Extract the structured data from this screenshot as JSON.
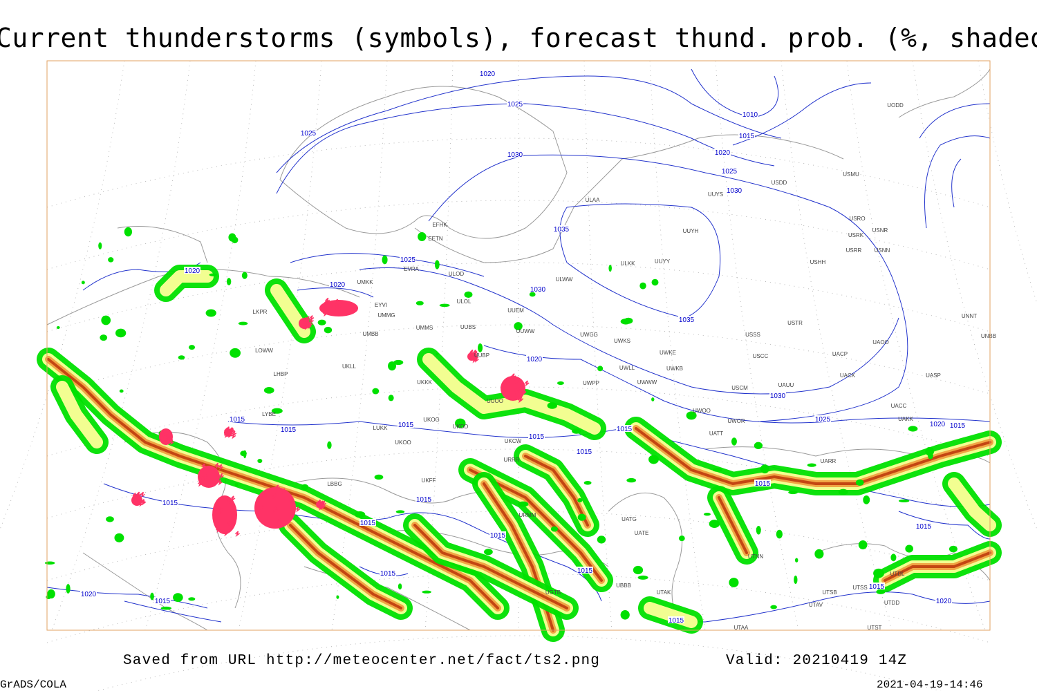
{
  "title": "Current thunderstorms (symbols), forecast thund. prob. (%, shaded)",
  "footer": {
    "source": "Saved from URL http://meteocenter.net/fact/ts2.png",
    "valid": "Valid: 20210419 14Z",
    "credit": "GrADS/COLA",
    "timestamp": "2021-04-19-14:46"
  },
  "isobar_labels": [
    "1020",
    "1025",
    "1025",
    "1030",
    "1010",
    "1015",
    "1020",
    "1025",
    "1030",
    "1035",
    "1025",
    "1020",
    "1020",
    "1030",
    "1035",
    "1020",
    "1030",
    "1025",
    "1015",
    "1015",
    "1015",
    "1015",
    "1015",
    "1015",
    "1020",
    "1015",
    "1015",
    "1015",
    "1015",
    "1015",
    "1015",
    "1015",
    "1015",
    "1015",
    "1020",
    "1015",
    "1015",
    "1020",
    "1015"
  ],
  "station_labels": [
    "UODD",
    "ULAA",
    "EFHK",
    "EETN",
    "EVRA",
    "ULOD",
    "UMKK",
    "EYVI",
    "UMMG",
    "ULOL",
    "UUEM",
    "UUWW",
    "UMMS",
    "UUBS",
    "UMBB",
    "UWGG",
    "UWKS",
    "UWKE",
    "USSS",
    "USTR",
    "USCC",
    "USCM",
    "UAUU",
    "UACP",
    "UACK",
    "UASP",
    "UAOO",
    "UNBB",
    "UNNT",
    "USDD",
    "USMU",
    "UUYS",
    "UUYH",
    "UUYY",
    "ULKK",
    "ULWW",
    "USHH",
    "USRO",
    "USRK",
    "USNR",
    "USRR",
    "USNN",
    "UWPP",
    "UWLL",
    "UWWW",
    "UWKB",
    "UWOO",
    "UWOR",
    "UATT",
    "UAKK",
    "UACC",
    "UARR",
    "UUBP",
    "UUOO",
    "UKKK",
    "UKLL",
    "LKPR",
    "LOWW",
    "LHBP",
    "LYBE",
    "LUKK",
    "UKOO",
    "UKFF",
    "LBBG",
    "URRR",
    "UKCW",
    "UKOG",
    "UKDD",
    "URMM",
    "UGTB",
    "UATE",
    "UATG",
    "UTAK",
    "UTNN",
    "UTSB",
    "UTAV",
    "UTDL",
    "UTSS",
    "UTDD",
    "UTST",
    "UTAA",
    "UBBB"
  ]
}
